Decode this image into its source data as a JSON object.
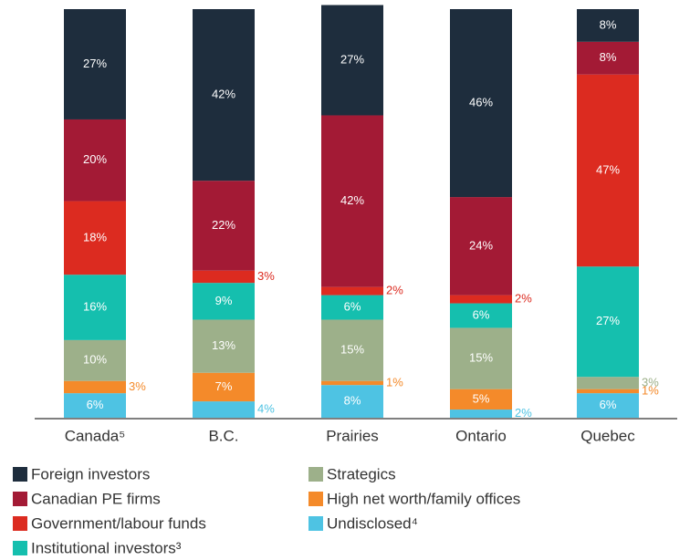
{
  "chart_data": {
    "type": "stacked_bar",
    "categories": [
      "Canada⁵",
      "B.C.",
      "Prairies",
      "Ontario",
      "Quebec"
    ],
    "ylim": [
      0,
      100
    ],
    "series": [
      {
        "name": "Foreign investors",
        "color": "#1e2d3d",
        "values": [
          27,
          42,
          27,
          46,
          8
        ],
        "value_labels": [
          "27%",
          "42%",
          "27%",
          "46%",
          "8%"
        ]
      },
      {
        "name": "Canadian PE firms",
        "color": "#a31a35",
        "values": [
          20,
          22,
          42,
          24,
          8
        ],
        "value_labels": [
          "20%",
          "22%",
          "42%",
          "24%",
          "8%"
        ]
      },
      {
        "name": "Government/labour funds",
        "color": "#dc2b20",
        "values": [
          18,
          3,
          2,
          2,
          47
        ],
        "value_labels": [
          "18%",
          "3%",
          "2%",
          "2%",
          "47%"
        ]
      },
      {
        "name": "Institutional investors³",
        "color": "#15bfae",
        "values": [
          16,
          9,
          6,
          6,
          27
        ],
        "value_labels": [
          "16%",
          "9%",
          "6%",
          "6%",
          "27%"
        ]
      },
      {
        "name": "Strategics",
        "color": "#9db08a",
        "values": [
          10,
          13,
          15,
          15,
          3
        ],
        "value_labels": [
          "10%",
          "13%",
          "15%",
          "15%",
          "3%"
        ]
      },
      {
        "name": "High net worth/family offices",
        "color": "#f48a2a",
        "values": [
          3,
          7,
          1,
          5,
          1
        ],
        "value_labels": [
          "3%",
          "7%",
          "1%",
          "5%",
          "1%"
        ]
      },
      {
        "name": "Undisclosed⁴",
        "color": "#4ec3e3",
        "values": [
          6,
          4,
          8,
          2,
          6
        ],
        "value_labels": [
          "6%",
          "4%",
          "8%",
          "2%",
          "6%"
        ]
      }
    ]
  }
}
